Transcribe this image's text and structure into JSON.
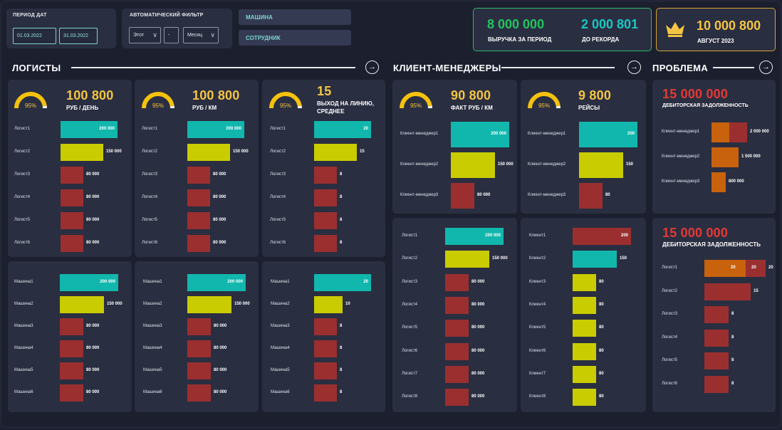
{
  "filters": {
    "period_label": "ПЕРИОД ДАТ",
    "date_from": "01.03.2022",
    "date_to": "31.03.2022",
    "auto_label": "АВТОМАТИЧЕСКИЙ ФИЛЬТР",
    "auto_select1": "Этот",
    "auto_select2": "-",
    "auto_select3": "Месяц",
    "machine": "МАШИНА",
    "employee": "СОТРУДНИК"
  },
  "kpi": {
    "revenue": "8 000 000",
    "revenue_label": "ВЫРУЧКА ЗА ПЕРИОД",
    "to_record": "2 000 801",
    "to_record_label": "ДО РЕКОРДА",
    "record": "10 000 800",
    "record_label": "АВГУСТ 2023"
  },
  "sections": {
    "logists": "ЛОГИСТЫ",
    "managers": "КЛИЕНТ-МЕНЕДЖЕРЫ",
    "problem": "ПРОБЛЕМА"
  },
  "gauge_pct": "95%",
  "cards": {
    "c1": {
      "value": "100 800",
      "sub": "РУБ / ДЕНЬ",
      "gauge": 0.95
    },
    "c2": {
      "value": "100 800",
      "sub": "РУБ / КМ",
      "gauge": 0.95
    },
    "c3": {
      "value": "15",
      "sub1": "ВЫХОД НА ЛИНИЮ,",
      "sub2": "СРЕДНЕЕ",
      "gauge": 0.95
    },
    "c4": {
      "value": "90 800",
      "sub": "ФАКТ РУБ / КМ",
      "gauge": 0.95
    },
    "c5": {
      "value": "9 800",
      "sub": "РЕЙСЫ",
      "gauge": 0.95
    },
    "p1": {
      "value": "15 000 000",
      "sub": "ДЕБИТОРСКАЯ ЗАДОЛЖЕННОСТЬ"
    },
    "p2": {
      "value": "15 000 000",
      "sub": "ДЕБИТОРСКАЯ ЗАДОЛЖЕННОСТЬ"
    }
  },
  "charts": {
    "log_rub_day": {
      "labels": [
        "Логист1",
        "Логист2",
        "Логист3",
        "Логист4",
        "Логист5",
        "Логист6"
      ],
      "values": [
        "200 000",
        "150 000",
        "80 000",
        "80 000",
        "80 000",
        "80 000"
      ],
      "nums": [
        200000,
        150000,
        80000,
        80000,
        80000,
        80000
      ]
    },
    "log_rub_km": {
      "labels": [
        "Логист1",
        "Логист2",
        "Логист3",
        "Логист4",
        "Логист5",
        "Логист6"
      ],
      "values": [
        "200 000",
        "150 000",
        "80 000",
        "80 000",
        "80 000",
        "80 000"
      ],
      "nums": [
        200000,
        150000,
        80000,
        80000,
        80000,
        80000
      ]
    },
    "log_line": {
      "labels": [
        "Логист1",
        "Логист2",
        "Логист3",
        "Логист4",
        "Логист5",
        "Логист6"
      ],
      "values": [
        "20",
        "15",
        "8",
        "8",
        "8",
        "8"
      ],
      "nums": [
        20,
        15,
        8,
        8,
        8,
        8
      ]
    },
    "mach_rub_day": {
      "labels": [
        "Машина1",
        "Машина2",
        "Машина3",
        "Машина4",
        "Машина5",
        "Машина6"
      ],
      "values": [
        "200 000",
        "150 000",
        "80 000",
        "80 000",
        "80 000",
        "80 000"
      ],
      "nums": [
        200000,
        150000,
        80000,
        80000,
        80000,
        80000
      ]
    },
    "mach_rub_km": {
      "labels": [
        "Машина1",
        "Машина2",
        "Машина3",
        "Машина4",
        "Машина5",
        "Машина6"
      ],
      "values": [
        "200 000",
        "150 000",
        "80 000",
        "80 000",
        "80 000",
        "80 000"
      ],
      "nums": [
        200000,
        150000,
        80000,
        80000,
        80000,
        80000
      ]
    },
    "mach_line": {
      "labels": [
        "Машина1",
        "Машина2",
        "Машина3",
        "Машина4",
        "Машина5",
        "Машина6"
      ],
      "values": [
        "20",
        "10",
        "8",
        "8",
        "8",
        "8"
      ],
      "nums": [
        20,
        10,
        8,
        8,
        8,
        8
      ]
    },
    "mgr_fact": {
      "labels": [
        "Клиент-менеджер1",
        "Клиент-менеджер2",
        "Клиент-менеджер3"
      ],
      "values": [
        "200 000",
        "150 000",
        "80 000"
      ],
      "nums": [
        200000,
        150000,
        80000
      ]
    },
    "mgr_trips": {
      "labels": [
        "Клиент-менеджер1",
        "Клиент-менеджер2",
        "Клиент-менеджер3"
      ],
      "values": [
        "200",
        "150",
        "80"
      ],
      "nums": [
        200,
        150,
        80
      ]
    },
    "mgr_logist": {
      "labels": [
        "Логист1",
        "Логист2",
        "Логист3",
        "Логист4",
        "Логист5",
        "Логист6",
        "Логист7",
        "Логист8"
      ],
      "values": [
        "200 000",
        "150 000",
        "80 000",
        "80 000",
        "80 000",
        "80 000",
        "80 000",
        "80 000"
      ],
      "nums": [
        200000,
        150000,
        80000,
        80000,
        80000,
        80000,
        80000,
        80000
      ]
    },
    "mgr_client": {
      "labels": [
        "Клиент1",
        "Клиент2",
        "Клиент3",
        "Клиент4",
        "Клиент5",
        "Клиент6",
        "Клиент7",
        "Клиент8"
      ],
      "values": [
        "200",
        "150",
        "80",
        "80",
        "80",
        "80",
        "80",
        "80"
      ],
      "nums": [
        200,
        150,
        80,
        80,
        80,
        80,
        80,
        80
      ]
    },
    "prob1": {
      "labels": [
        "Клиент-менеджер1",
        "Клиент-менеджер2",
        "Клиент-менеджер3"
      ],
      "values": [
        "2 000 000",
        "1 500 000",
        "800 000"
      ],
      "nums": [
        2000000,
        1500000,
        800000
      ]
    },
    "prob2": {
      "labels": [
        "Логист1",
        "Логист2",
        "Логист3",
        "Логист4",
        "Логист5",
        "Логист6"
      ],
      "values": [
        "20",
        "15",
        "8",
        "8",
        "8",
        "8"
      ],
      "nums": [
        20,
        15,
        8,
        8,
        8,
        8
      ],
      "seg_labels": [
        "20",
        "20"
      ]
    }
  },
  "colors": {
    "teal": "#11b7ad",
    "yellow": "#c9cc00",
    "brown": "#9b2f2f",
    "orange": "#c8620d",
    "gold": "#f4c542",
    "green": "#1fc27a",
    "accent_teal": "#19c7c2"
  }
}
